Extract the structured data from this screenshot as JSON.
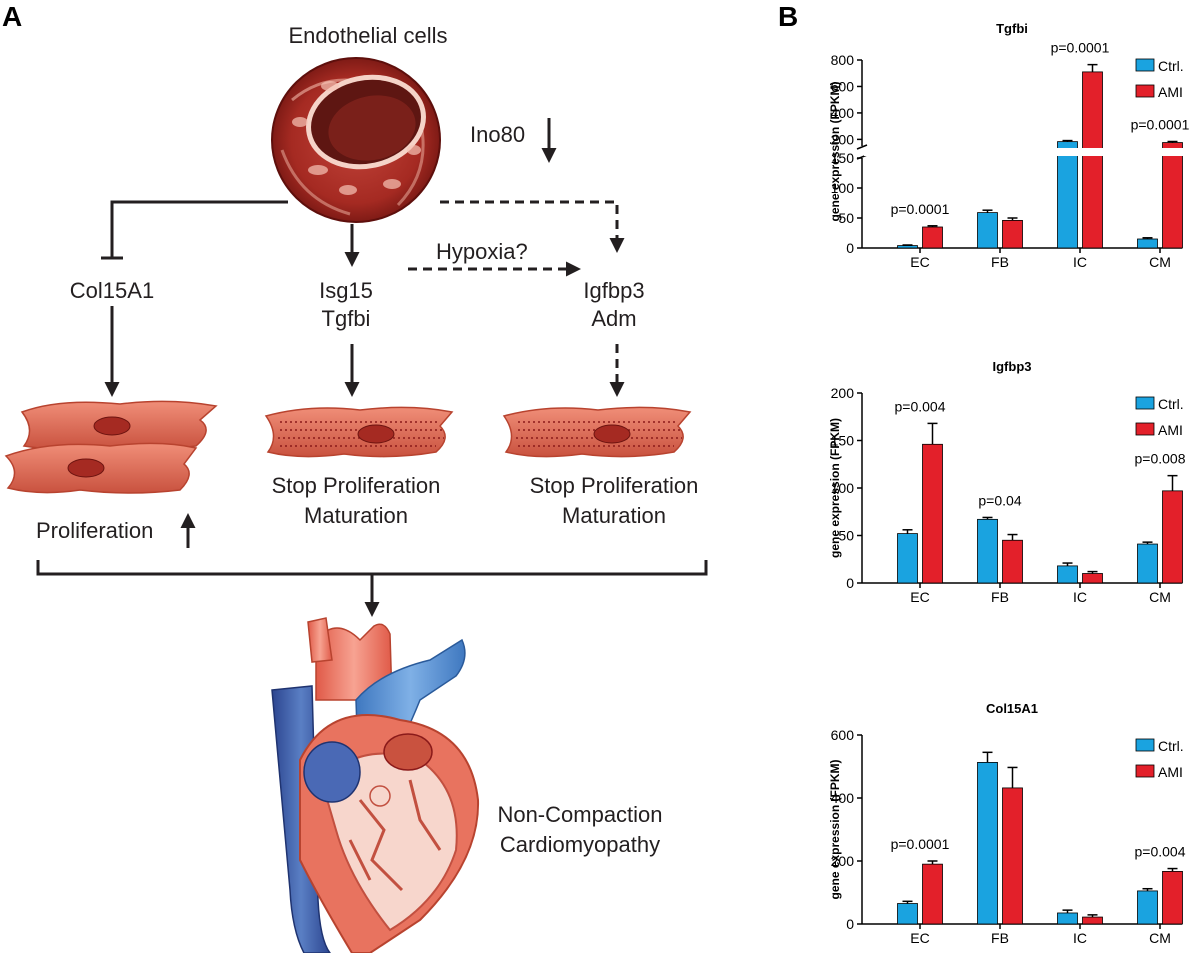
{
  "panels": {
    "a_label": "A",
    "b_label": "B"
  },
  "diagram": {
    "endothelial": "Endothelial cells",
    "ino80": "Ino80",
    "hypoxia": "Hypoxia?",
    "col15a1": "Col15A1",
    "isg15": "Isg15",
    "tgfbi": "Tgfbi",
    "igfbp3": "Igfbp3",
    "adm": "Adm",
    "proliferation": "Proliferation",
    "stop_prolif_1": "Stop Proliferation",
    "maturation_1": "Maturation",
    "stop_prolif_2": "Stop Proliferation",
    "maturation_2": "Maturation",
    "ncc_1": "Non-Compaction",
    "ncc_2": "Cardiomyopathy"
  },
  "colors": {
    "ctrl": "#1aa3e0",
    "ami": "#e3202a",
    "tissue": "#d9604e",
    "tissue_dark": "#8b1a1a",
    "vein": "#3a5ea8",
    "artery": "#e8735f"
  },
  "chart_data": [
    {
      "type": "bar",
      "title": "Tgfbi",
      "ylabel": "gene expression (FPKM)",
      "categories": [
        "EC",
        "FB",
        "IC",
        "CM"
      ],
      "series": [
        {
          "name": "Ctrl.",
          "values": [
            4,
            59,
            183,
            15
          ],
          "errors": [
            1,
            4,
            8,
            2
          ]
        },
        {
          "name": "AMI",
          "values": [
            35,
            46,
            710,
            176
          ],
          "errors": [
            2,
            4,
            55,
            8
          ]
        }
      ],
      "axis_break": {
        "lower": [
          0,
          150
        ],
        "upper": [
          150,
          800
        ]
      },
      "yticks_lower": [
        0,
        50,
        100,
        150
      ],
      "yticks_upper": [
        200,
        400,
        600,
        800
      ],
      "annotations": [
        {
          "category": "EC",
          "text": "p=0.0001"
        },
        {
          "category": "IC",
          "text": "p=0.0001"
        },
        {
          "category": "CM",
          "text": "p=0.0001"
        }
      ]
    },
    {
      "type": "bar",
      "title": "Igfbp3",
      "ylabel": "gene expression (FPKM)",
      "categories": [
        "EC",
        "FB",
        "IC",
        "CM"
      ],
      "series": [
        {
          "name": "Ctrl.",
          "values": [
            52,
            67,
            18,
            41
          ],
          "errors": [
            4,
            2,
            3,
            2
          ]
        },
        {
          "name": "AMI",
          "values": [
            146,
            45,
            10,
            97
          ],
          "errors": [
            22,
            6,
            2,
            16
          ]
        }
      ],
      "ylim": [
        0,
        200
      ],
      "yticks": [
        0,
        50,
        100,
        150,
        200
      ],
      "annotations": [
        {
          "category": "EC",
          "text": "p=0.004"
        },
        {
          "category": "FB",
          "text": "p=0.04"
        },
        {
          "category": "CM",
          "text": "p=0.008"
        }
      ]
    },
    {
      "type": "bar",
      "title": "Col15A1",
      "ylabel": "gene expression (FPKM)",
      "categories": [
        "EC",
        "FB",
        "IC",
        "CM"
      ],
      "series": [
        {
          "name": "Ctrl.",
          "values": [
            65,
            513,
            35,
            105
          ],
          "errors": [
            7,
            32,
            9,
            7
          ]
        },
        {
          "name": "AMI",
          "values": [
            190,
            432,
            22,
            167
          ],
          "errors": [
            10,
            65,
            7,
            9
          ]
        }
      ],
      "ylim": [
        0,
        600
      ],
      "yticks": [
        0,
        200,
        400,
        600
      ],
      "annotations": [
        {
          "category": "EC",
          "text": "p=0.0001"
        },
        {
          "category": "CM",
          "text": "p=0.004"
        }
      ]
    }
  ]
}
